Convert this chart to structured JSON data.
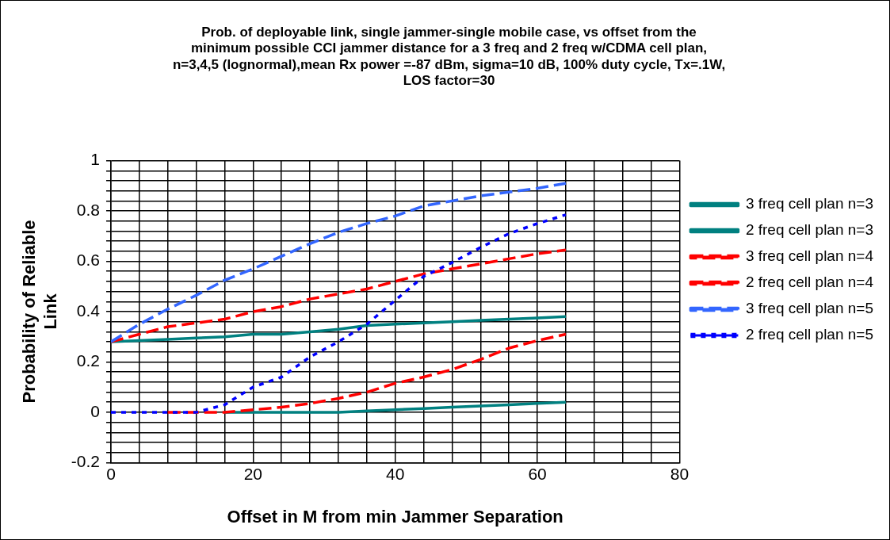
{
  "chart_data": {
    "type": "line",
    "title": "Prob. of deployable link, single jammer-single mobile case, vs offset from the minimum possible CCI jammer distance for a 3 freq and 2 freq w/CDMA cell plan, n=3,4,5 (lognormal),mean Rx power =-87 dBm, sigma=10 dB, 100% duty cycle, Tx=.1W, LOS factor=30",
    "xlabel": "Offset in M from min Jammer Separation",
    "ylabel": "Probability of Reliable Link",
    "x": [
      0,
      4,
      8,
      12,
      16,
      20,
      24,
      28,
      32,
      36,
      40,
      44,
      48,
      52,
      56,
      60,
      64
    ],
    "series": [
      {
        "name": "3 freq cell plan n=3",
        "color": "#008080",
        "line_style": "solid",
        "values": [
          0.28,
          0.285,
          0.29,
          0.295,
          0.3,
          0.31,
          0.31,
          0.32,
          0.33,
          0.345,
          0.35,
          0.355,
          0.36,
          0.365,
          0.37,
          0.375,
          0.38
        ]
      },
      {
        "name": "2 freq cell plan n=3",
        "color": "#008080",
        "line_style": "solid",
        "values": [
          null,
          null,
          null,
          null,
          0,
          0,
          0,
          0,
          0,
          0.005,
          0.01,
          0.015,
          0.02,
          0.025,
          0.03,
          0.035,
          0.04
        ]
      },
      {
        "name": "3 freq cell plan n=4",
        "color": "#ff0000",
        "line_style": "dashed",
        "values": [
          0.28,
          0.31,
          0.34,
          0.355,
          0.37,
          0.4,
          0.42,
          0.45,
          0.47,
          0.49,
          0.52,
          0.55,
          0.57,
          0.59,
          0.61,
          0.63,
          0.645
        ]
      },
      {
        "name": "2 freq cell plan n=4",
        "color": "#ff0000",
        "line_style": "dashed",
        "values": [
          null,
          null,
          0,
          0,
          0,
          0.01,
          0.02,
          0.035,
          0.055,
          0.08,
          0.115,
          0.14,
          0.17,
          0.21,
          0.255,
          0.285,
          0.31
        ]
      },
      {
        "name": "3 freq cell plan n=5",
        "color": "#3366ff",
        "line_style": "dashed",
        "values": [
          0.28,
          0.35,
          0.41,
          0.465,
          0.525,
          0.57,
          0.62,
          0.67,
          0.715,
          0.75,
          0.78,
          0.82,
          0.84,
          0.86,
          0.875,
          0.89,
          0.91
        ]
      },
      {
        "name": "2 freq cell plan n=5",
        "color": "#0000ff",
        "line_style": "dotted",
        "values": [
          0,
          0,
          0,
          0,
          0.03,
          0.1,
          0.14,
          0.22,
          0.28,
          0.35,
          0.445,
          0.54,
          0.595,
          0.655,
          0.71,
          0.75,
          0.785
        ]
      }
    ],
    "xlim": [
      0,
      80
    ],
    "xticks": [
      0,
      {
        "value": 4,
        "label": null
      },
      {
        "value": 8,
        "label": null
      },
      {
        "value": 12,
        "label": null
      },
      {
        "value": 16,
        "label": null
      },
      20,
      {
        "value": 24,
        "label": null
      },
      {
        "value": 28,
        "label": null
      },
      {
        "value": 32,
        "label": null
      },
      {
        "value": 36,
        "label": null
      },
      40,
      {
        "value": 44,
        "label": null
      },
      {
        "value": 48,
        "label": null
      },
      {
        "value": 52,
        "label": null
      },
      {
        "value": 56,
        "label": null
      },
      60,
      {
        "value": 64,
        "label": null
      },
      {
        "value": 68,
        "label": null
      },
      {
        "value": 72,
        "label": null
      },
      {
        "value": 76,
        "label": null
      },
      80
    ],
    "ylim": [
      -0.2,
      1
    ],
    "yticks": [
      -0.2,
      {
        "value": -0.16,
        "label": null
      },
      {
        "value": -0.12,
        "label": null
      },
      {
        "value": -0.08,
        "label": null
      },
      {
        "value": -0.04,
        "label": null
      },
      0,
      {
        "value": 0.04,
        "label": null
      },
      {
        "value": 0.08,
        "label": null
      },
      {
        "value": 0.12,
        "label": null
      },
      {
        "value": 0.16,
        "label": null
      },
      0.2,
      {
        "value": 0.24,
        "label": null
      },
      {
        "value": 0.28,
        "label": null
      },
      {
        "value": 0.32,
        "label": null
      },
      {
        "value": 0.36,
        "label": null
      },
      0.4,
      {
        "value": 0.44,
        "label": null
      },
      {
        "value": 0.48,
        "label": null
      },
      {
        "value": 0.52,
        "label": null
      },
      {
        "value": 0.56,
        "label": null
      },
      0.6,
      {
        "value": 0.64,
        "label": null
      },
      {
        "value": 0.68,
        "label": null
      },
      {
        "value": 0.72,
        "label": null
      },
      {
        "value": 0.76,
        "label": null
      },
      0.8,
      {
        "value": 0.84,
        "label": null
      },
      {
        "value": 0.88,
        "label": null
      },
      {
        "value": 0.92,
        "label": null
      },
      {
        "value": 0.96,
        "label": null
      },
      1
    ],
    "grid": true,
    "legend": "right",
    "marker": "none"
  }
}
